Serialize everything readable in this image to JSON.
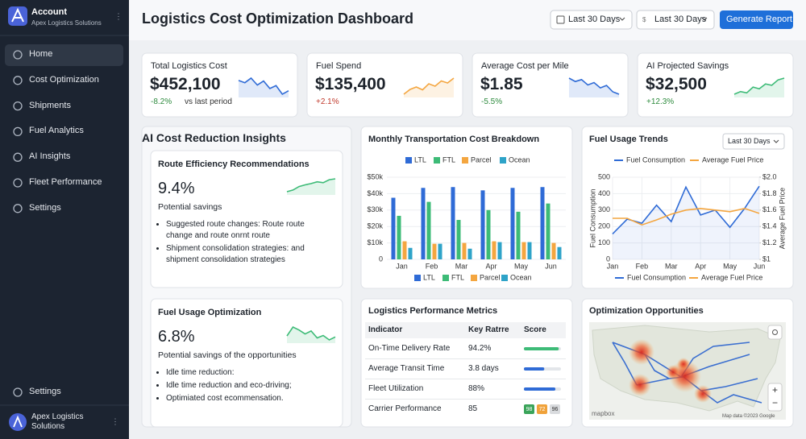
{
  "sidebar": {
    "account": "Account",
    "org": "Apex Logistics Solutions",
    "nav": [
      "Home",
      "Cost Optimization",
      "Shipments",
      "Fuel Analytics",
      "AI Insights",
      "Fleet Performance",
      "Settings"
    ],
    "active": 0,
    "footer_settings": "Settings",
    "footer_account": "Apex Logistics Solutions"
  },
  "header": {
    "title": "Logistics Cost Optimization Dashboard",
    "filters": [
      "Last 30 Days",
      "Last 30 Days"
    ],
    "currency_icon": "$",
    "button": "Generate Report"
  },
  "kpis": [
    {
      "label": "Total Logistics Cost",
      "value": "$452,100",
      "change": "-8.2%",
      "note": "vs last period",
      "change_color": "#2e8b3e",
      "trend": [
        6,
        5.6,
        6.4,
        5.2,
        5.9,
        4.6,
        5.1,
        3.6,
        4.2
      ],
      "trend_color": "#2f6bd6"
    },
    {
      "label": "Fuel Spend",
      "value": "$135,400",
      "change": "+2.1%",
      "change_color": "#c0392b",
      "trend": [
        3,
        4.2,
        4.8,
        4.1,
        5.6,
        5,
        6.3,
        5.8,
        7
      ],
      "trend_color": "#f4a640"
    },
    {
      "label": "Average Cost per Mile",
      "value": "$1.85",
      "change": "-5.5%",
      "change_color": "#2e8b3e",
      "trend": [
        6.5,
        5.8,
        6.2,
        5.1,
        5.6,
        4.5,
        5,
        3.7,
        3.2
      ],
      "trend_color": "#2f6bd6"
    },
    {
      "label": "AI Projected Savings",
      "value": "$32,500",
      "change": "+12.3%",
      "change_color": "#2e8b3e",
      "trend": [
        3,
        3.6,
        3.3,
        4.6,
        4.2,
        5.3,
        5,
        6.2,
        6.6
      ],
      "trend_color": "#3dbb77"
    }
  ],
  "insights": {
    "title": "AI Cost Reduction Insights",
    "trend_color": "#3dbb77",
    "cards": [
      {
        "title": "Route Efficiency Recommendations",
        "value": "9.4%",
        "caption": "Potential savings",
        "bullets": [
          "Suggested route changes: Route route change and route onrnt route",
          "Shipment consolidation strategies: and shipment consolidation strategies"
        ],
        "trend": [
          3,
          3.4,
          4.2,
          4.6,
          4.9,
          5.3,
          5.1,
          5.8,
          6
        ]
      },
      {
        "title": "Fuel Usage Optimization",
        "value": "6.8%",
        "caption": "Potential savings of the opportunities",
        "bullets": [
          "Idle time reduction:",
          "Idle time reduction and eco-driving;",
          "Optimiated cost ecommensation."
        ],
        "trend": [
          4,
          5.8,
          5.2,
          4.4,
          5,
          3.6,
          4.1,
          3.2,
          3.8
        ]
      }
    ]
  },
  "cost_chart": {
    "type": "bar",
    "title": "Monthly Transportation Cost Breakdown",
    "categories": [
      "Jan",
      "Feb",
      "Mar",
      "Apr",
      "May",
      "Jun"
    ],
    "series": [
      {
        "name": "LTL",
        "color": "#2f6bd6",
        "values": [
          37500,
          43500,
          44000,
          42000,
          43500,
          44000
        ]
      },
      {
        "name": "FTL",
        "color": "#3dbb77",
        "values": [
          26500,
          35000,
          24000,
          30000,
          29000,
          34000
        ]
      },
      {
        "name": "Parcel",
        "color": "#f4a640",
        "values": [
          11000,
          9500,
          10000,
          11000,
          10500,
          10000
        ]
      },
      {
        "name": "Ocean",
        "color": "#2ea3c8",
        "values": [
          7000,
          9500,
          6500,
          10500,
          10500,
          7500
        ]
      }
    ],
    "ylim": [
      0,
      50000
    ],
    "yticks": [
      0,
      {
        "value": 10000,
        "label": "$10k"
      },
      {
        "value": 20000,
        "label": "$20k"
      },
      {
        "value": 30000,
        "label": "$30k"
      },
      {
        "value": 40000,
        "label": "$40k"
      },
      {
        "value": 50000,
        "label": "$50k"
      }
    ]
  },
  "fuel_chart": {
    "type": "line",
    "title": "Fuel Usage Trends",
    "filter": "Last 30 Days",
    "categories": [
      "Jan",
      null,
      "Feb",
      null,
      "Mar",
      null,
      "Apr",
      null,
      "May",
      null,
      "Jun"
    ],
    "series": [
      {
        "name": "Fuel Consumption",
        "color": "#2f6bd6",
        "values": [
          155,
          245,
          220,
          330,
          230,
          440,
          270,
          300,
          195,
          310,
          445
        ]
      },
      {
        "name": "Average Fuel Price",
        "color": "#f4a640",
        "axis": "y2",
        "values": [
          1.5,
          1.5,
          1.42,
          1.48,
          1.55,
          1.6,
          1.62,
          1.6,
          1.58,
          1.62,
          1.56
        ]
      }
    ],
    "ylim": [
      0,
      500
    ],
    "yticks": [
      0,
      100,
      200,
      300,
      400,
      500
    ],
    "y2lim": [
      1,
      2
    ],
    "y2ticks": [
      {
        "value": 1,
        "label": "$1"
      },
      {
        "value": 1.2,
        "label": "$1.2"
      },
      {
        "value": 1.4,
        "label": "$1.4"
      },
      {
        "value": 1.6,
        "label": "$1.6"
      },
      {
        "value": 1.8,
        "label": "$1.8"
      },
      {
        "value": 2,
        "label": "$2.0"
      }
    ],
    "ylabel": "Fuel Consumption",
    "y2label": "Average Fuel Price"
  },
  "metrics": {
    "title": "Logistics Performance Metrics",
    "columns": [
      "Indicator",
      "Key Ratrre",
      "Score"
    ],
    "rows": [
      {
        "indicator": "On-Time Delivery Rate",
        "value": "94.2%",
        "score": 94,
        "color": "#3dbb77"
      },
      {
        "indicator": "Average Transit Time",
        "value": "3.8 days",
        "score": 55,
        "color": "#2f6bd6"
      },
      {
        "indicator": "Fleet Utilization",
        "value": "88%",
        "score": 85,
        "color": "#2f6bd6"
      },
      {
        "indicator": "Carrier Performance",
        "value": "85",
        "badges": [
          {
            "value": 98,
            "color": "#3aa45a"
          },
          {
            "value": 72,
            "color": "#f0a23a"
          },
          {
            "value": 96,
            "color": "#d9dbde"
          }
        ]
      }
    ]
  },
  "map": {
    "title": "Optimization Opportunities",
    "logo": "mapbox",
    "attribution": "Map data ©2023 Google",
    "zoom_in": "+",
    "zoom_out": "−"
  }
}
